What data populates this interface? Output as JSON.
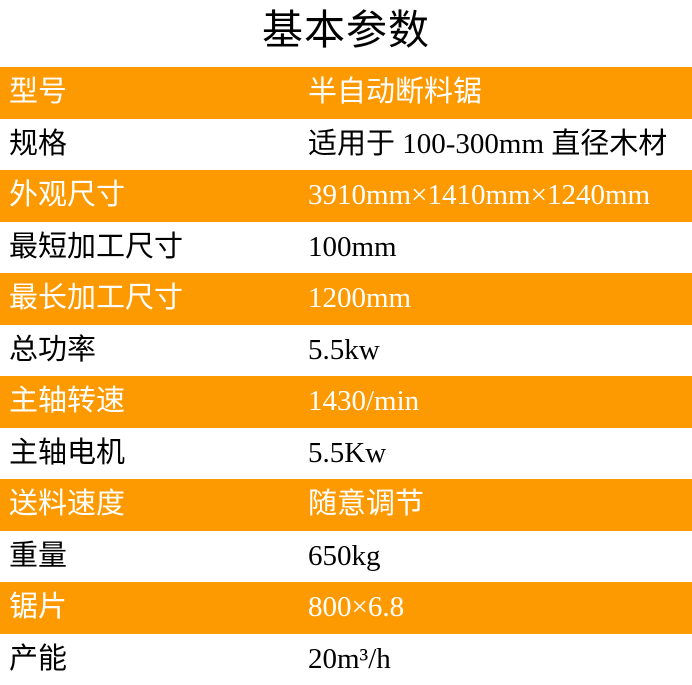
{
  "title": "基本参数",
  "colors": {
    "highlight_row_bg": "#fe9a01",
    "highlight_row_text": "#ffffff",
    "plain_row_bg": "#ffffff",
    "plain_row_text": "#000000"
  },
  "table": {
    "rows": [
      {
        "label": "型号",
        "value": "半自动断料锯",
        "highlight": true
      },
      {
        "label": "规格",
        "value": "适用于 100-300mm 直径木材",
        "highlight": false
      },
      {
        "label": "外观尺寸",
        "value": "3910mm×1410mm×1240mm",
        "highlight": true
      },
      {
        "label": "最短加工尺寸",
        "value": "100mm",
        "highlight": false
      },
      {
        "label": "最长加工尺寸",
        "value": "1200mm",
        "highlight": true
      },
      {
        "label": "总功率",
        "value": "5.5kw",
        "highlight": false
      },
      {
        "label": "主轴转速",
        "value": "1430/min",
        "highlight": true
      },
      {
        "label": "主轴电机",
        "value": "5.5Kw",
        "highlight": false
      },
      {
        "label": "送料速度",
        "value": "随意调节",
        "highlight": true
      },
      {
        "label": "重量",
        "value": "650kg",
        "highlight": false
      },
      {
        "label": "锯片",
        "value": "800×6.8",
        "highlight": true
      },
      {
        "label": "产能",
        "value": "20m³/h",
        "highlight": false
      }
    ]
  }
}
